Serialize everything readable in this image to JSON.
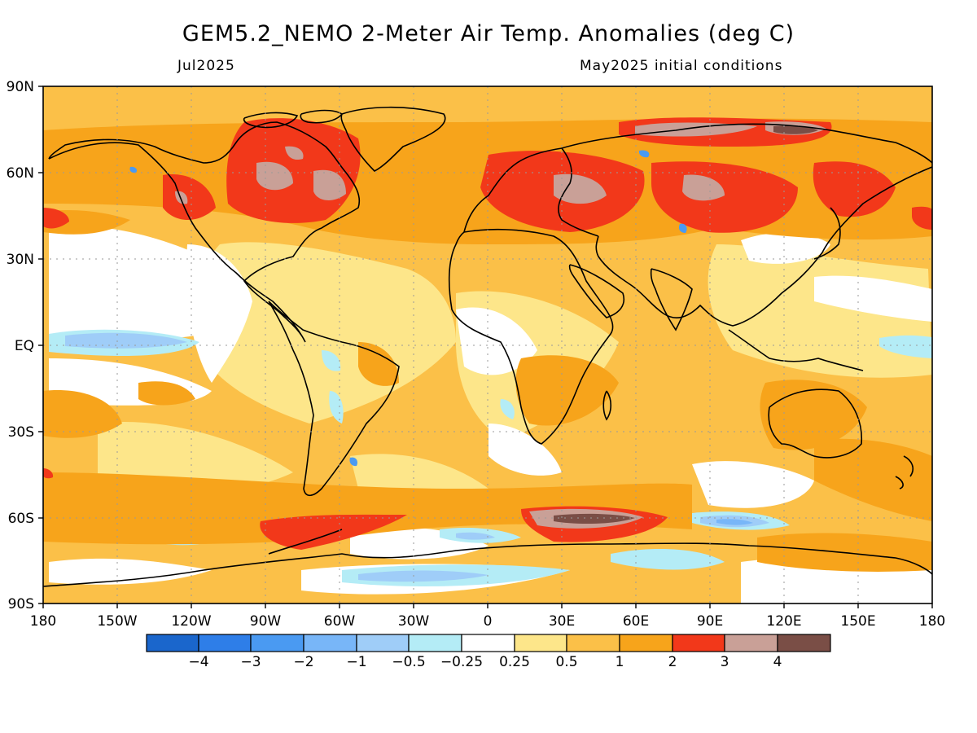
{
  "title": "GEM5.2_NEMO 2-Meter Air Temp. Anomalies (deg C)",
  "valid_month": "Jul2025",
  "initial_conditions": "May2025 initial conditions",
  "lat_labels": [
    "90N",
    "60N",
    "30N",
    "EQ",
    "30S",
    "60S",
    "90S"
  ],
  "lon_labels": [
    "180",
    "150W",
    "120W",
    "90W",
    "60W",
    "30W",
    "0",
    "30E",
    "60E",
    "90E",
    "120E",
    "150E",
    "180"
  ],
  "colorbar": {
    "labels": [
      "−4",
      "−3",
      "−2",
      "−1",
      "−0.5",
      "−0.25",
      "0.25",
      "0.5",
      "1",
      "2",
      "3",
      "4"
    ],
    "colors": [
      "#1a66cc",
      "#2e7ee8",
      "#4a9af2",
      "#78b6f8",
      "#9fcdf8",
      "#b4ecf6",
      "#ffffff",
      "#fde68a",
      "#fbc048",
      "#f7a41b",
      "#f2381a",
      "#c9a097",
      "#7a4e46"
    ]
  },
  "colors": {
    "land_outline": "#000000",
    "ocean_default": "#fbc048",
    "grid": "#9a9a9a"
  }
}
